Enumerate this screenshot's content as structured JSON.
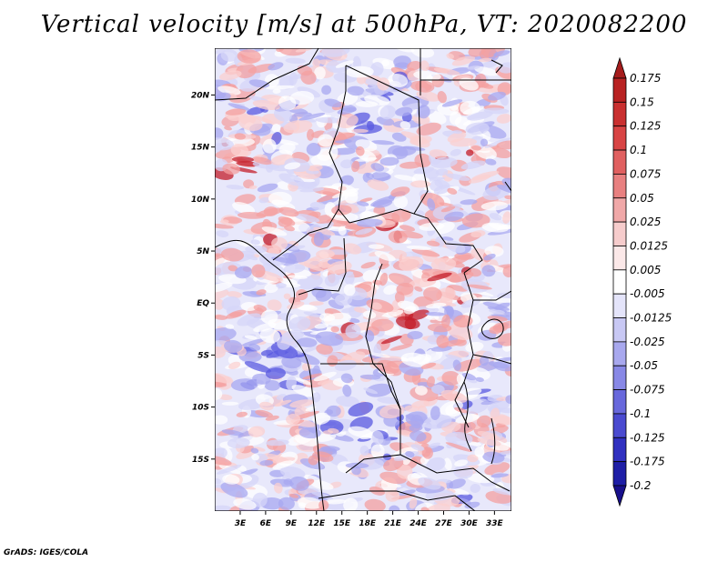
{
  "title": "Vertical velocity [m/s] at 500hPa, VT: 2020082200",
  "credit": "GrADS: IGES/COLA",
  "map": {
    "lat_labels": [
      "20N",
      "15N",
      "10N",
      "5N",
      "EQ",
      "5S",
      "10S",
      "15S"
    ],
    "lon_labels": [
      "3E",
      "6E",
      "9E",
      "12E",
      "15E",
      "18E",
      "21E",
      "24E",
      "27E",
      "30E",
      "33E"
    ],
    "lat_values": [
      20,
      15,
      10,
      5,
      0,
      -5,
      -10,
      -15
    ],
    "lon_values": [
      3,
      6,
      9,
      12,
      15,
      18,
      21,
      24,
      27,
      30,
      33
    ],
    "lat_range": [
      -20,
      24.5
    ],
    "lon_range": [
      0,
      35
    ]
  },
  "colorbar": {
    "labels": [
      "0.175",
      "0.15",
      "0.125",
      "0.1",
      "0.075",
      "0.05",
      "0.025",
      "0.0125",
      "0.005",
      "-0.005",
      "-0.0125",
      "-0.025",
      "-0.05",
      "-0.075",
      "-0.1",
      "-0.125",
      "-0.175",
      "-0.2"
    ],
    "colors": [
      "#a51c1c",
      "#b82222",
      "#c93030",
      "#d84444",
      "#e06060",
      "#e88080",
      "#f0a8a8",
      "#f6cccc",
      "#fbe8e8",
      "#ffffff",
      "#e4e4fa",
      "#c8c8f4",
      "#a8a8ee",
      "#8888e6",
      "#6868dc",
      "#4a4ad0",
      "#3030c0",
      "#1e1ea6",
      "#18108c"
    ]
  },
  "field_colors": {
    "strong_pos": "#c41e2a",
    "pos": "#f4a0a0",
    "weak_pos": "#fbd0d0",
    "neutral": "#ffffff",
    "weak_neg": "#d6d6f8",
    "neg": "#a8a8f0",
    "strong_neg": "#5a5ae0"
  }
}
